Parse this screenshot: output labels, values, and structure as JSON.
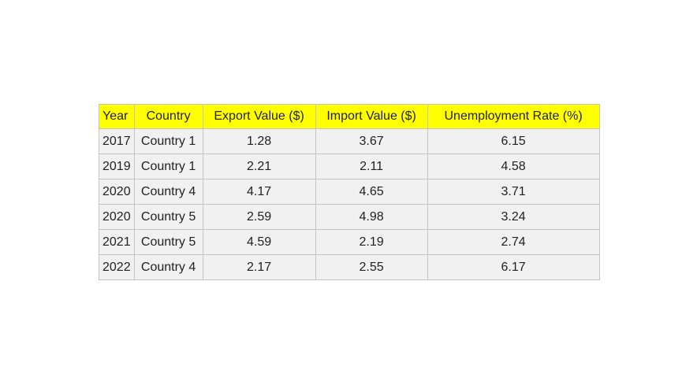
{
  "chart_data": {
    "type": "table",
    "columns": [
      "Year",
      "Country",
      "Export Value ($)",
      "Import Value ($)",
      "Unemployment Rate (%)"
    ],
    "rows": [
      [
        "2017",
        "Country 1",
        "1.28",
        "3.67",
        "6.15"
      ],
      [
        "2019",
        "Country 1",
        "2.21",
        "2.11",
        "4.58"
      ],
      [
        "2020",
        "Country 4",
        "4.17",
        "4.65",
        "3.71"
      ],
      [
        "2020",
        "Country 5",
        "2.59",
        "4.98",
        "3.24"
      ],
      [
        "2021",
        "Country 5",
        "4.59",
        "2.19",
        "2.74"
      ],
      [
        "2022",
        "Country 4",
        "2.17",
        "2.55",
        "6.17"
      ]
    ],
    "colors": {
      "header_background": "#ffff00",
      "cell_background": "#f1f1f1",
      "border": "#c4c4c4",
      "text": "#222222"
    }
  }
}
